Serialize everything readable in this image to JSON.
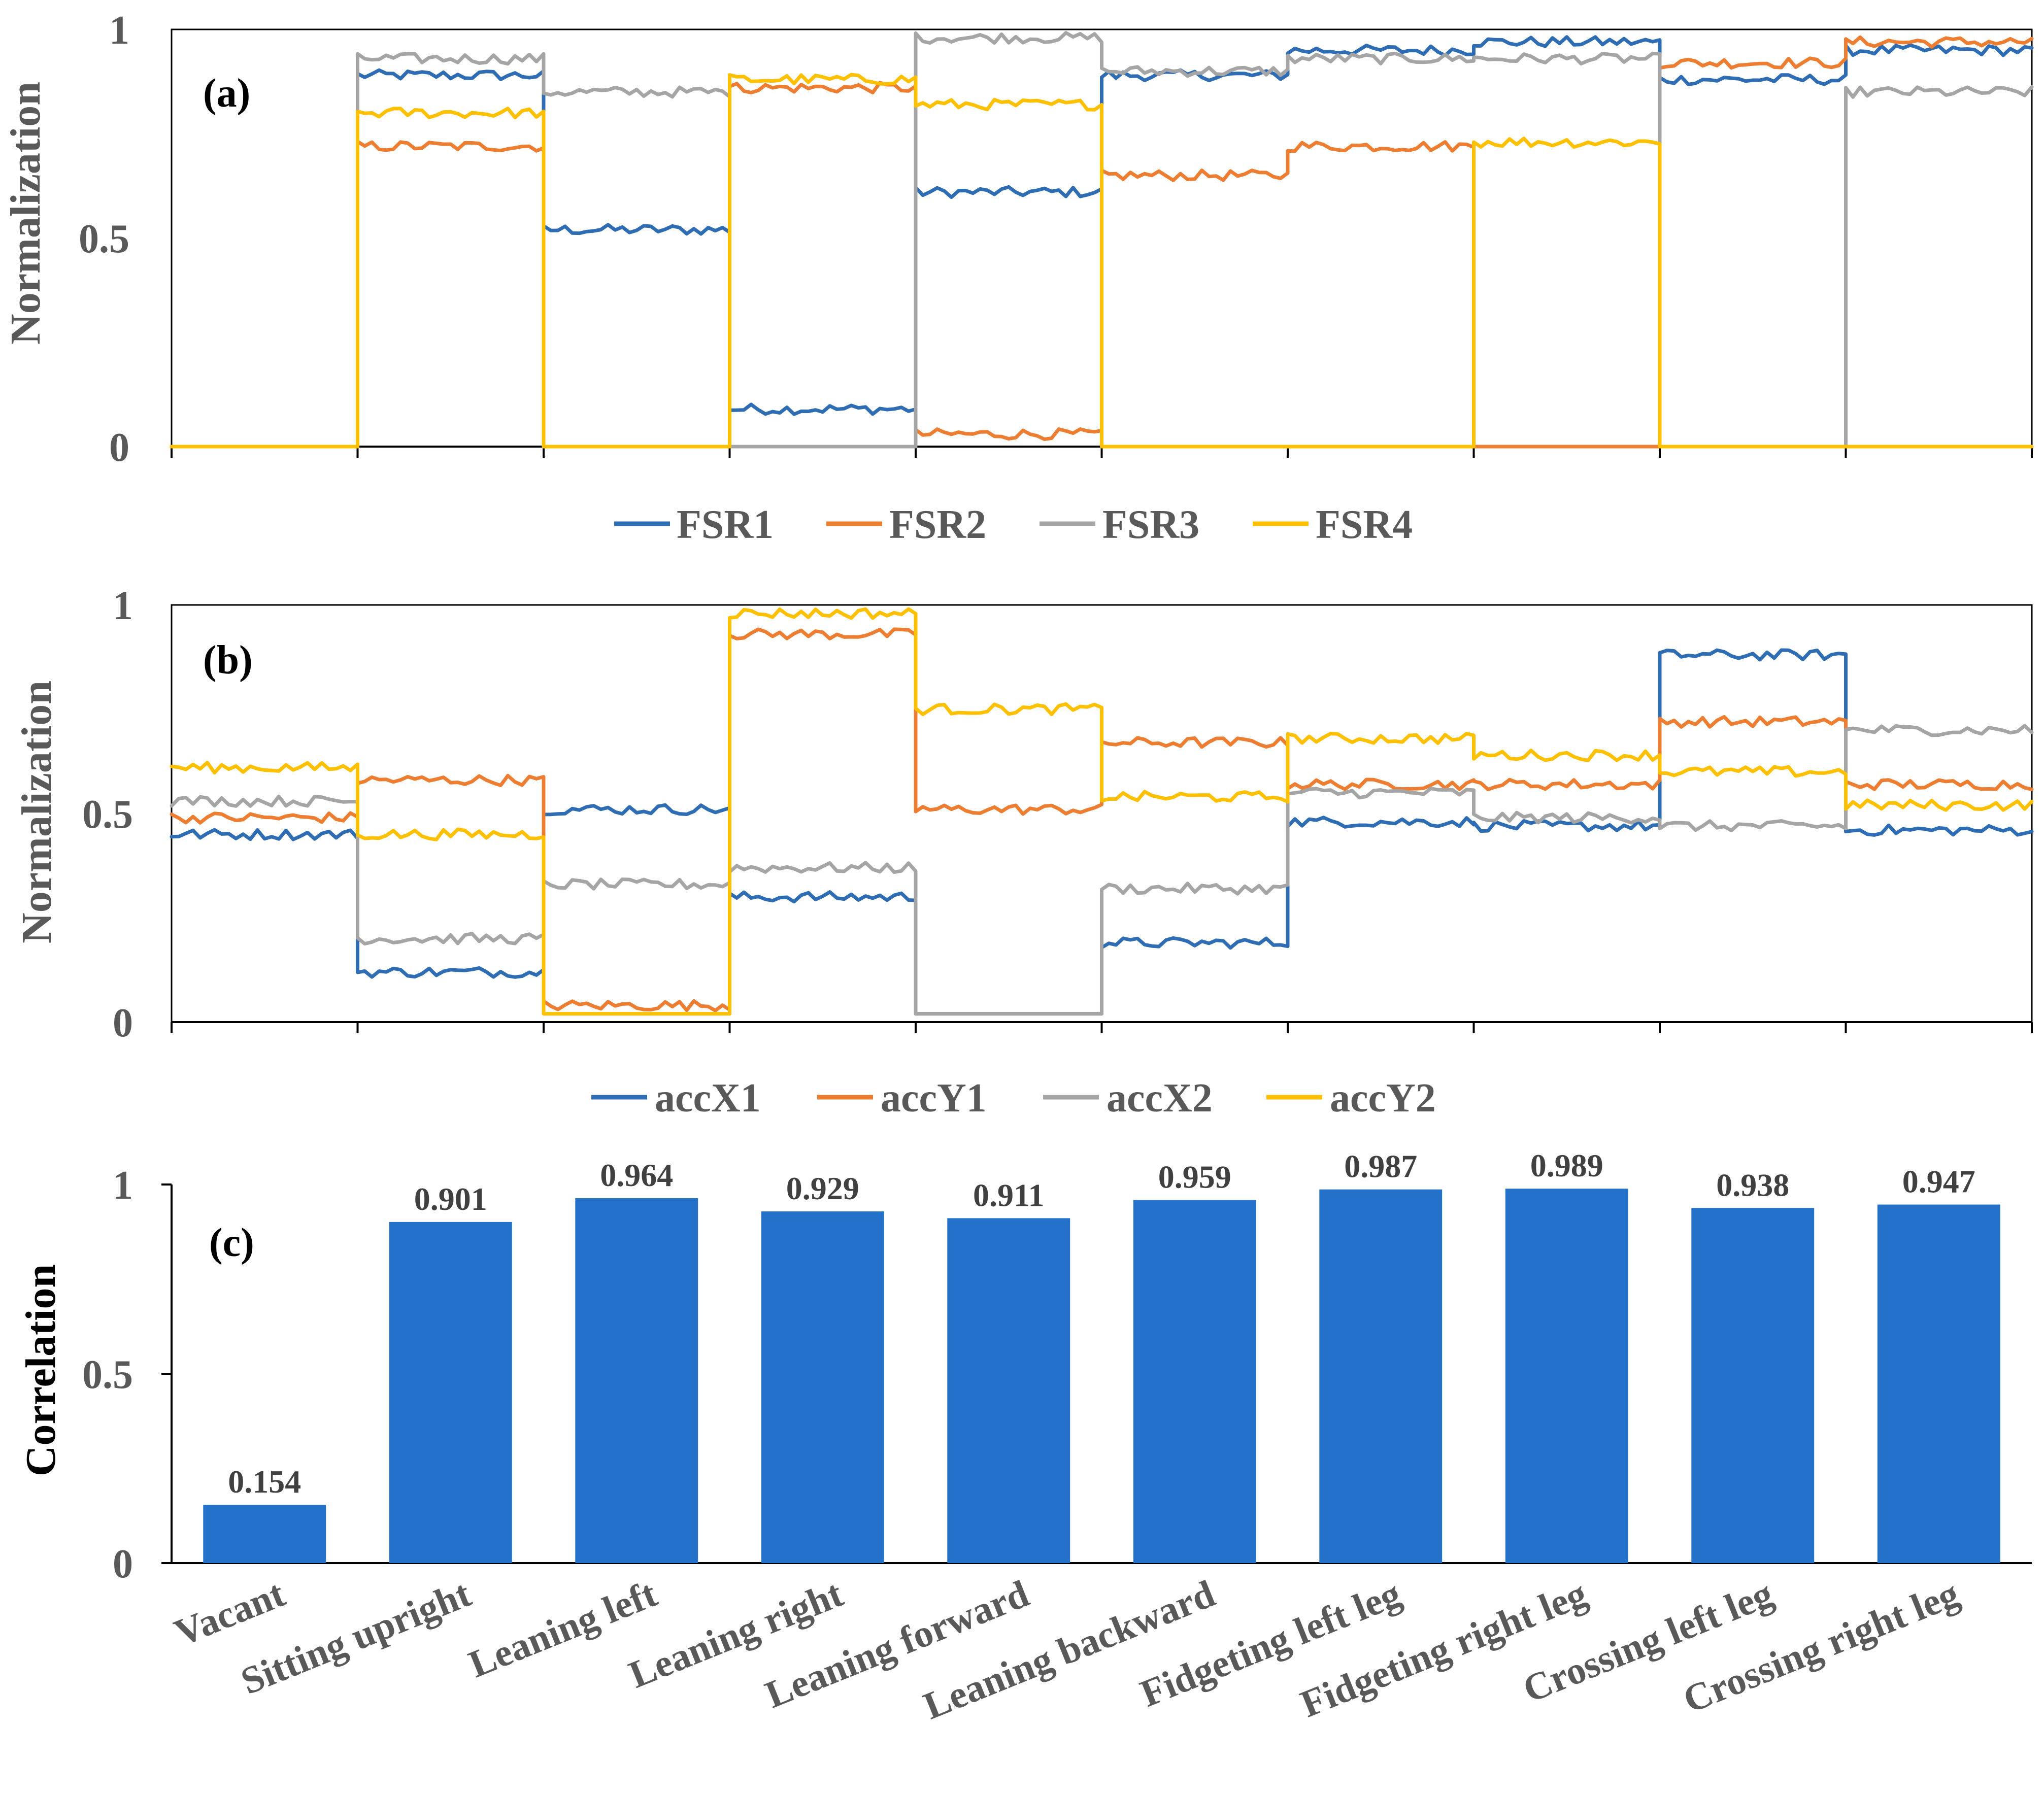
{
  "chart_data": [
    {
      "type": "line",
      "panel": "(a)",
      "ylabel": "Normalization",
      "ylim": [
        0,
        1
      ],
      "yticks": [
        "0",
        "0.5",
        "1"
      ],
      "segments": 10,
      "legend_position": "bottom",
      "series": [
        {
          "name": "FSR1",
          "color": "#2e6db4",
          "segment_values": [
            0.0,
            0.89,
            0.52,
            0.09,
            0.61,
            0.89,
            0.95,
            0.97,
            0.88,
            0.95
          ]
        },
        {
          "name": "FSR2",
          "color": "#ed7d31",
          "segment_values": [
            0.0,
            0.72,
            0.0,
            0.86,
            0.03,
            0.65,
            0.72,
            0.0,
            0.92,
            0.97
          ]
        },
        {
          "name": "FSR3",
          "color": "#a5a5a5",
          "segment_values": [
            0.0,
            0.93,
            0.85,
            0.0,
            0.98,
            0.9,
            0.93,
            0.93,
            0.0,
            0.85
          ]
        },
        {
          "name": "FSR4",
          "color": "#ffc000",
          "segment_values": [
            0.0,
            0.8,
            0.0,
            0.88,
            0.82,
            0.0,
            0.0,
            0.73,
            0.0,
            0.0
          ]
        }
      ]
    },
    {
      "type": "line",
      "panel": "(b)",
      "ylabel": "Normalization",
      "ylim": [
        0,
        1
      ],
      "yticks": [
        "0",
        "0.5",
        "1"
      ],
      "segments": 10,
      "legend_position": "bottom",
      "series": [
        {
          "name": "accX1",
          "color": "#2e6db4",
          "segment_values": [
            0.45,
            0.12,
            0.51,
            0.3,
            0.02,
            0.19,
            0.48,
            0.47,
            0.88,
            0.46
          ]
        },
        {
          "name": "accY1",
          "color": "#ed7d31",
          "segment_values": [
            0.49,
            0.58,
            0.04,
            0.93,
            0.51,
            0.67,
            0.57,
            0.57,
            0.72,
            0.57
          ]
        },
        {
          "name": "accX2",
          "color": "#a5a5a5",
          "segment_values": [
            0.53,
            0.2,
            0.33,
            0.37,
            0.02,
            0.32,
            0.55,
            0.49,
            0.47,
            0.7
          ]
        },
        {
          "name": "accY2",
          "color": "#ffc000",
          "segment_values": [
            0.61,
            0.45,
            0.02,
            0.98,
            0.75,
            0.54,
            0.68,
            0.64,
            0.6,
            0.52
          ]
        }
      ]
    },
    {
      "type": "bar",
      "panel": "(c)",
      "ylabel": "Correlation",
      "ylim": [
        0,
        1
      ],
      "yticks": [
        "0",
        "0.5",
        "1"
      ],
      "bar_color": "#2371c8",
      "categories": [
        "Vacant",
        "Sitting upright",
        "Leaning left",
        "Leaning right",
        "Leaning forward",
        "Leaning backward",
        "Fidgeting left leg",
        "Fidgeting right leg",
        "Crossing left leg",
        "Crossing right leg"
      ],
      "values": [
        0.154,
        0.901,
        0.964,
        0.929,
        0.911,
        0.959,
        0.987,
        0.989,
        0.938,
        0.947
      ],
      "value_labels": [
        "0.154",
        "0.901",
        "0.964",
        "0.929",
        "0.911",
        "0.959",
        "0.987",
        "0.989",
        "0.938",
        "0.947"
      ]
    }
  ]
}
